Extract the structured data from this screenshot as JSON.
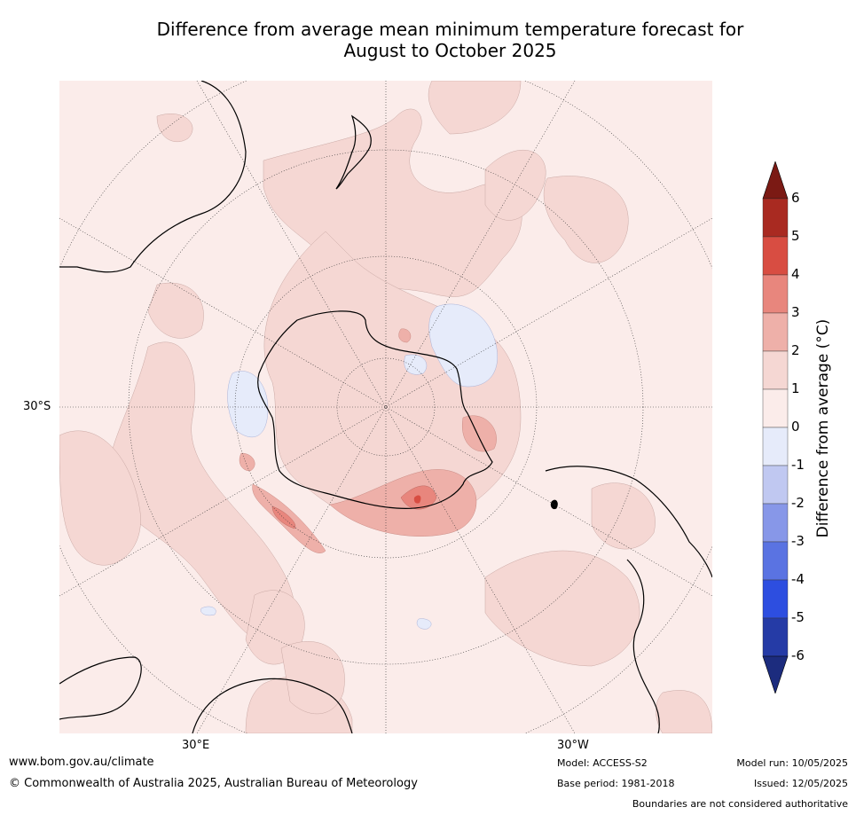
{
  "title": {
    "line1": "Difference from average mean minimum temperature forecast for",
    "line2": "August to October 2025"
  },
  "map": {
    "lat_label": "30°S",
    "lon_label_east": "30°E",
    "lon_label_west": "30°W"
  },
  "colorbar": {
    "label": "Difference from average (°C)",
    "ticks": [
      "6",
      "5",
      "4",
      "3",
      "2",
      "1",
      "0",
      "-1",
      "-2",
      "-3",
      "-4",
      "-5",
      "-6"
    ],
    "colors": {
      "above_max": "#7b1a14",
      "5_6": "#a92a21",
      "4_5": "#d84d42",
      "3_4": "#e8867d",
      "2_3": "#eeb0a9",
      "1_2": "#f5d7d3",
      "0_1": "#fbecea",
      "m1_0": "#e6ebfa",
      "m2_m1": "#c0c8f1",
      "m3_m2": "#8797e8",
      "m4_m3": "#5a73e2",
      "m5_m4": "#2d4ee0",
      "m6_m5": "#253ba6",
      "below_min": "#1c2c7e"
    }
  },
  "footer": {
    "website": "www.bom.gov.au/climate",
    "copyright": "© Commonwealth of Australia 2025, Australian Bureau of Meteorology",
    "model": "Model: ACCESS-S2",
    "base_period": "Base period: 1981-2018",
    "model_run": "Model run: 10/05/2025",
    "issued": "Issued: 12/05/2025",
    "disclaimer": "Boundaries are not considered authoritative"
  }
}
